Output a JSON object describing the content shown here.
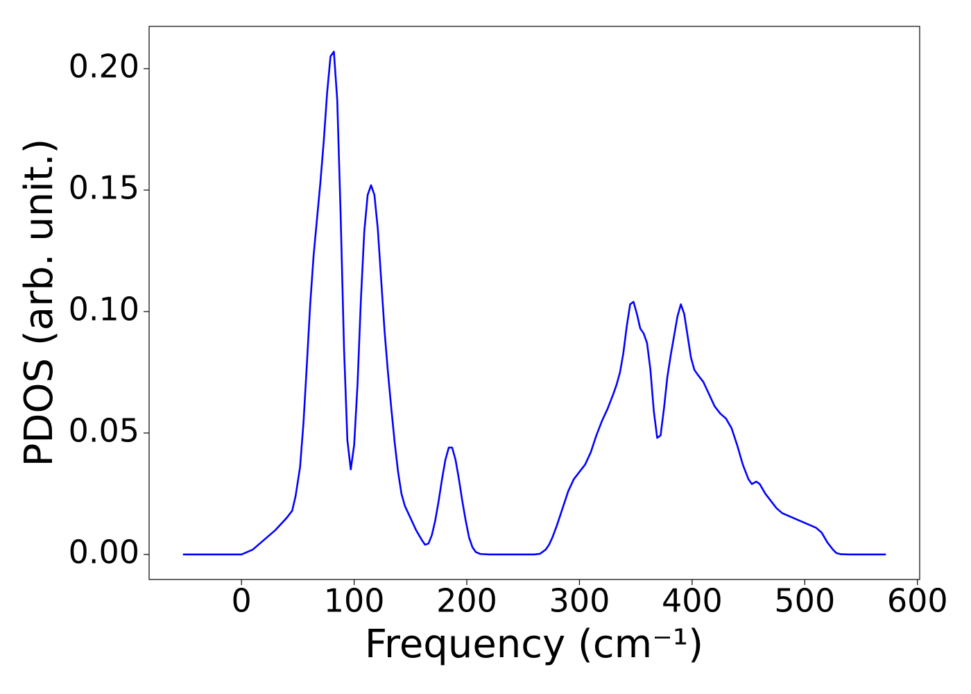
{
  "chart_data": {
    "type": "line",
    "x_label": "Frequency (cm⁻¹)",
    "y_label": "PDOS (arb. unit.)",
    "color": "#0000ff",
    "x": [
      -52,
      0,
      5,
      10,
      20,
      30,
      40,
      45,
      48,
      52,
      55,
      58,
      61,
      64,
      67,
      70,
      73,
      76,
      79,
      82,
      85,
      88,
      91,
      94,
      97,
      100,
      103,
      106,
      109,
      112,
      115,
      118,
      121,
      124,
      127,
      130,
      133,
      136,
      139,
      142,
      145,
      150,
      155,
      160,
      163,
      166,
      169,
      172,
      175,
      178,
      181,
      184,
      187,
      190,
      193,
      196,
      199,
      202,
      205,
      208,
      212,
      220,
      260,
      265,
      270,
      273,
      276,
      280,
      285,
      290,
      295,
      300,
      305,
      310,
      315,
      320,
      325,
      330,
      333,
      336,
      339,
      342,
      345,
      348,
      351,
      354,
      357,
      360,
      363,
      366,
      369,
      372,
      375,
      378,
      381,
      384,
      387,
      390,
      393,
      396,
      399,
      402,
      405,
      410,
      415,
      420,
      425,
      430,
      435,
      440,
      445,
      450,
      453,
      457,
      460,
      465,
      470,
      475,
      480,
      490,
      500,
      510,
      515,
      520,
      525,
      528,
      532,
      540,
      572
    ],
    "values": [
      0,
      0,
      0.001,
      0.002,
      0.006,
      0.01,
      0.015,
      0.018,
      0.024,
      0.036,
      0.054,
      0.078,
      0.103,
      0.123,
      0.138,
      0.153,
      0.17,
      0.19,
      0.205,
      0.207,
      0.187,
      0.14,
      0.085,
      0.047,
      0.035,
      0.045,
      0.07,
      0.105,
      0.133,
      0.148,
      0.152,
      0.148,
      0.134,
      0.113,
      0.092,
      0.075,
      0.06,
      0.046,
      0.034,
      0.025,
      0.02,
      0.015,
      0.01,
      0.006,
      0.004,
      0.0045,
      0.008,
      0.014,
      0.022,
      0.031,
      0.039,
      0.044,
      0.044,
      0.039,
      0.031,
      0.022,
      0.014,
      0.007,
      0.003,
      0.001,
      0.0002,
      0,
      0,
      0.0003,
      0.002,
      0.004,
      0.007,
      0.012,
      0.019,
      0.026,
      0.031,
      0.034,
      0.037,
      0.042,
      0.049,
      0.055,
      0.06,
      0.066,
      0.07,
      0.075,
      0.083,
      0.094,
      0.103,
      0.104,
      0.099,
      0.093,
      0.091,
      0.087,
      0.076,
      0.059,
      0.048,
      0.049,
      0.06,
      0.073,
      0.082,
      0.09,
      0.098,
      0.103,
      0.099,
      0.09,
      0.081,
      0.076,
      0.074,
      0.071,
      0.066,
      0.061,
      0.058,
      0.056,
      0.052,
      0.045,
      0.037,
      0.031,
      0.029,
      0.03,
      0.029,
      0.025,
      0.022,
      0.019,
      0.017,
      0.015,
      0.013,
      0.011,
      0.009,
      0.005,
      0.002,
      0.0006,
      0.0001,
      0,
      0
    ],
    "xlim": [
      -82,
      602
    ],
    "ylim": [
      -0.0103,
      0.2174
    ],
    "xticks": [
      0,
      100,
      200,
      300,
      400,
      500,
      600
    ],
    "yticks": [
      {
        "value": 0,
        "label": "0.00"
      },
      {
        "value": 0.05,
        "label": "0.05"
      },
      {
        "value": 0.1,
        "label": "0.10"
      },
      {
        "value": 0.15,
        "label": "0.15"
      },
      {
        "value": 0.2,
        "label": "0.20"
      }
    ],
    "grid": false
  }
}
